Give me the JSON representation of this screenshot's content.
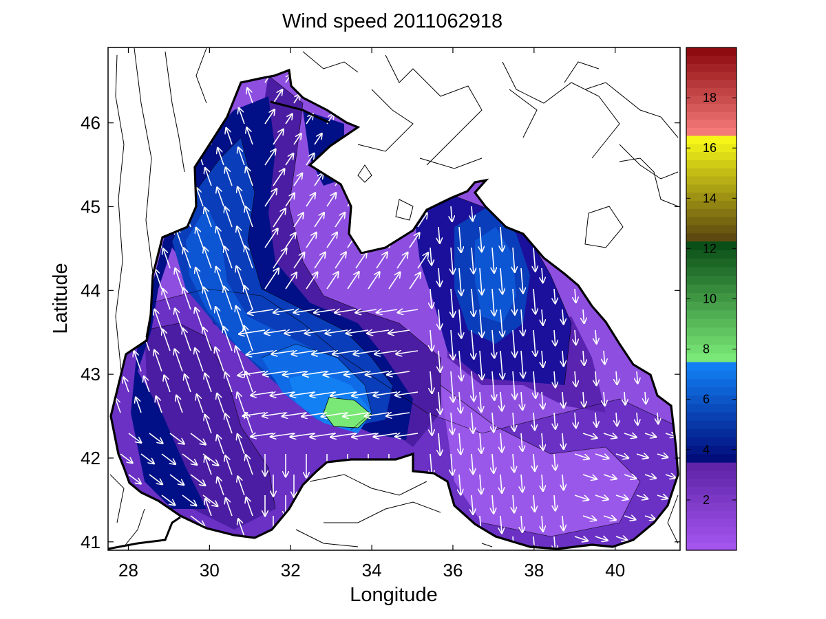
{
  "chart_data": {
    "type": "heatmap",
    "title": "Wind speed 2011062918",
    "xlabel": "Longitude",
    "ylabel": "Latitude",
    "xlim": [
      27.5,
      41.6
    ],
    "ylim": [
      40.9,
      46.9
    ],
    "xticks": [
      28,
      30,
      32,
      34,
      36,
      38,
      40
    ],
    "yticks": [
      41,
      42,
      43,
      44,
      45,
      46
    ],
    "colorbar": {
      "range": [
        0,
        20
      ],
      "ticks": [
        2,
        4,
        6,
        8,
        10,
        12,
        14,
        16,
        18
      ],
      "segments": [
        {
          "from": 0,
          "to": 3.5,
          "color_low": "#a455ee",
          "color_high": "#5f24a8"
        },
        {
          "from": 3.5,
          "to": 7.5,
          "color_low": "#020d7c",
          "color_high": "#1280f3"
        },
        {
          "from": 7.5,
          "to": 12.3,
          "color_low": "#7ae876",
          "color_high": "#0b4f18"
        },
        {
          "from": 12.3,
          "to": 16.5,
          "color_low": "#5e4a10",
          "color_high": "#f6f718"
        },
        {
          "from": 16.5,
          "to": 20,
          "color_low": "#f47a78",
          "color_high": "#8e0c10"
        }
      ]
    },
    "wind_speed_maxima": [
      {
        "lon": 33.4,
        "lat": 42.6,
        "speed": 7.8
      },
      {
        "lon": 37.1,
        "lat": 43.9,
        "speed": 6.0
      },
      {
        "lon": 30.2,
        "lat": 44.5,
        "speed": 5.8
      }
    ],
    "grid": false,
    "colors": {
      "background": "#ffffff",
      "sea_low": "#8e4fe0",
      "sea_high": "#1280f3",
      "maximum": "#7ae876",
      "arrows": "#ffffff",
      "coast": "#000000"
    }
  }
}
